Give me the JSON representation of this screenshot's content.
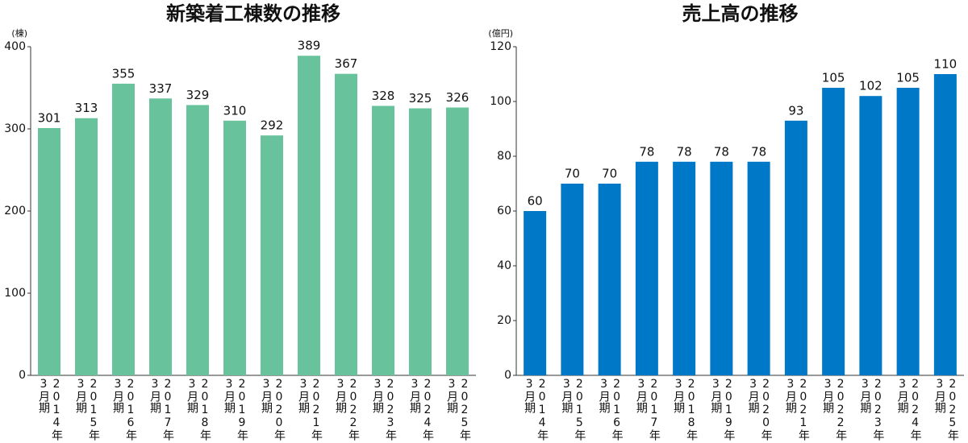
{
  "chart_data": [
    {
      "type": "bar",
      "title": "新築着工棟数の推移",
      "y_label": "(棟)",
      "categories": [
        "2014年3月期",
        "2015年3月期",
        "2016年3月期",
        "2017年3月期",
        "2018年3月期",
        "2019年3月期",
        "2020年3月期",
        "2021年3月期",
        "2022年3月期",
        "2023年3月期",
        "2024年3月期",
        "2025年3月期"
      ],
      "values": [
        301,
        313,
        355,
        337,
        329,
        310,
        292,
        389,
        367,
        328,
        325,
        326
      ],
      "color": "#68c29b",
      "ylim": [
        0,
        400
      ],
      "yticks": [
        0,
        100,
        200,
        300,
        400
      ]
    },
    {
      "type": "bar",
      "title": "売上高の推移",
      "y_label": "(億円)",
      "categories": [
        "2014年3月期",
        "2015年3月期",
        "2016年3月期",
        "2017年3月期",
        "2018年3月期",
        "2019年3月期",
        "2020年3月期",
        "2021年3月期",
        "2022年3月期",
        "2023年3月期",
        "2024年3月期",
        "2025年3月期"
      ],
      "values": [
        60,
        70,
        70,
        78,
        78,
        78,
        78,
        93,
        105,
        102,
        105,
        110
      ],
      "color": "#0078c8",
      "ylim": [
        0,
        120
      ],
      "yticks": [
        0,
        20,
        40,
        60,
        80,
        100,
        120
      ]
    }
  ]
}
